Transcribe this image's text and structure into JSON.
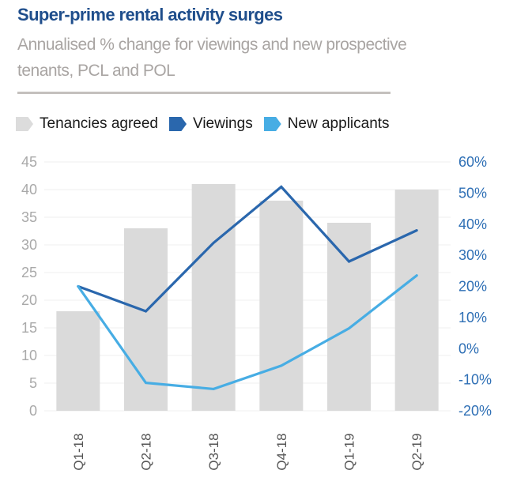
{
  "title": "Super-prime rental activity surges",
  "subtitle": "Annualised % change for viewings and new prospective tenants, PCL and POL",
  "legend": [
    {
      "label": "Tenancies agreed",
      "color": "#d9d9d9"
    },
    {
      "label": "Viewings",
      "color": "#2a67ad"
    },
    {
      "label": "New applicants",
      "color": "#47ade4"
    }
  ],
  "chart_data": {
    "type": "bar",
    "title": "Super-prime rental activity surges",
    "subtitle": "Annualised % change for viewings and new prospective tenants, PCL and POL",
    "categories": [
      "Q1-18",
      "Q2-18",
      "Q3-18",
      "Q4-18",
      "Q1-19",
      "Q2-19"
    ],
    "series": [
      {
        "name": "Tenancies agreed",
        "type": "bar",
        "axis": "left",
        "color": "#d9d9d9",
        "values": [
          18,
          33,
          41,
          38,
          34,
          40
        ]
      },
      {
        "name": "Viewings",
        "type": "line",
        "axis": "right",
        "color": "#2a67ad",
        "values": [
          20,
          12,
          34,
          52,
          28,
          38
        ]
      },
      {
        "name": "New applicants",
        "type": "line",
        "axis": "right",
        "color": "#47ade4",
        "values": [
          20,
          -11,
          -13,
          -5.5,
          6.5,
          23.5
        ]
      }
    ],
    "left_axis": {
      "min": 0,
      "max": 45,
      "ticks": [
        "45",
        "40",
        "35",
        "30",
        "25",
        "20",
        "15",
        "10",
        "5",
        "0"
      ]
    },
    "right_axis": {
      "min": -20,
      "max": 60,
      "ticks": [
        "60%",
        "50%",
        "40%",
        "30%",
        "20%",
        "10%",
        "0%",
        "-10%",
        "-20%"
      ]
    },
    "xlabel": "",
    "ylabel": "",
    "grid": true,
    "legend_position": "top"
  }
}
